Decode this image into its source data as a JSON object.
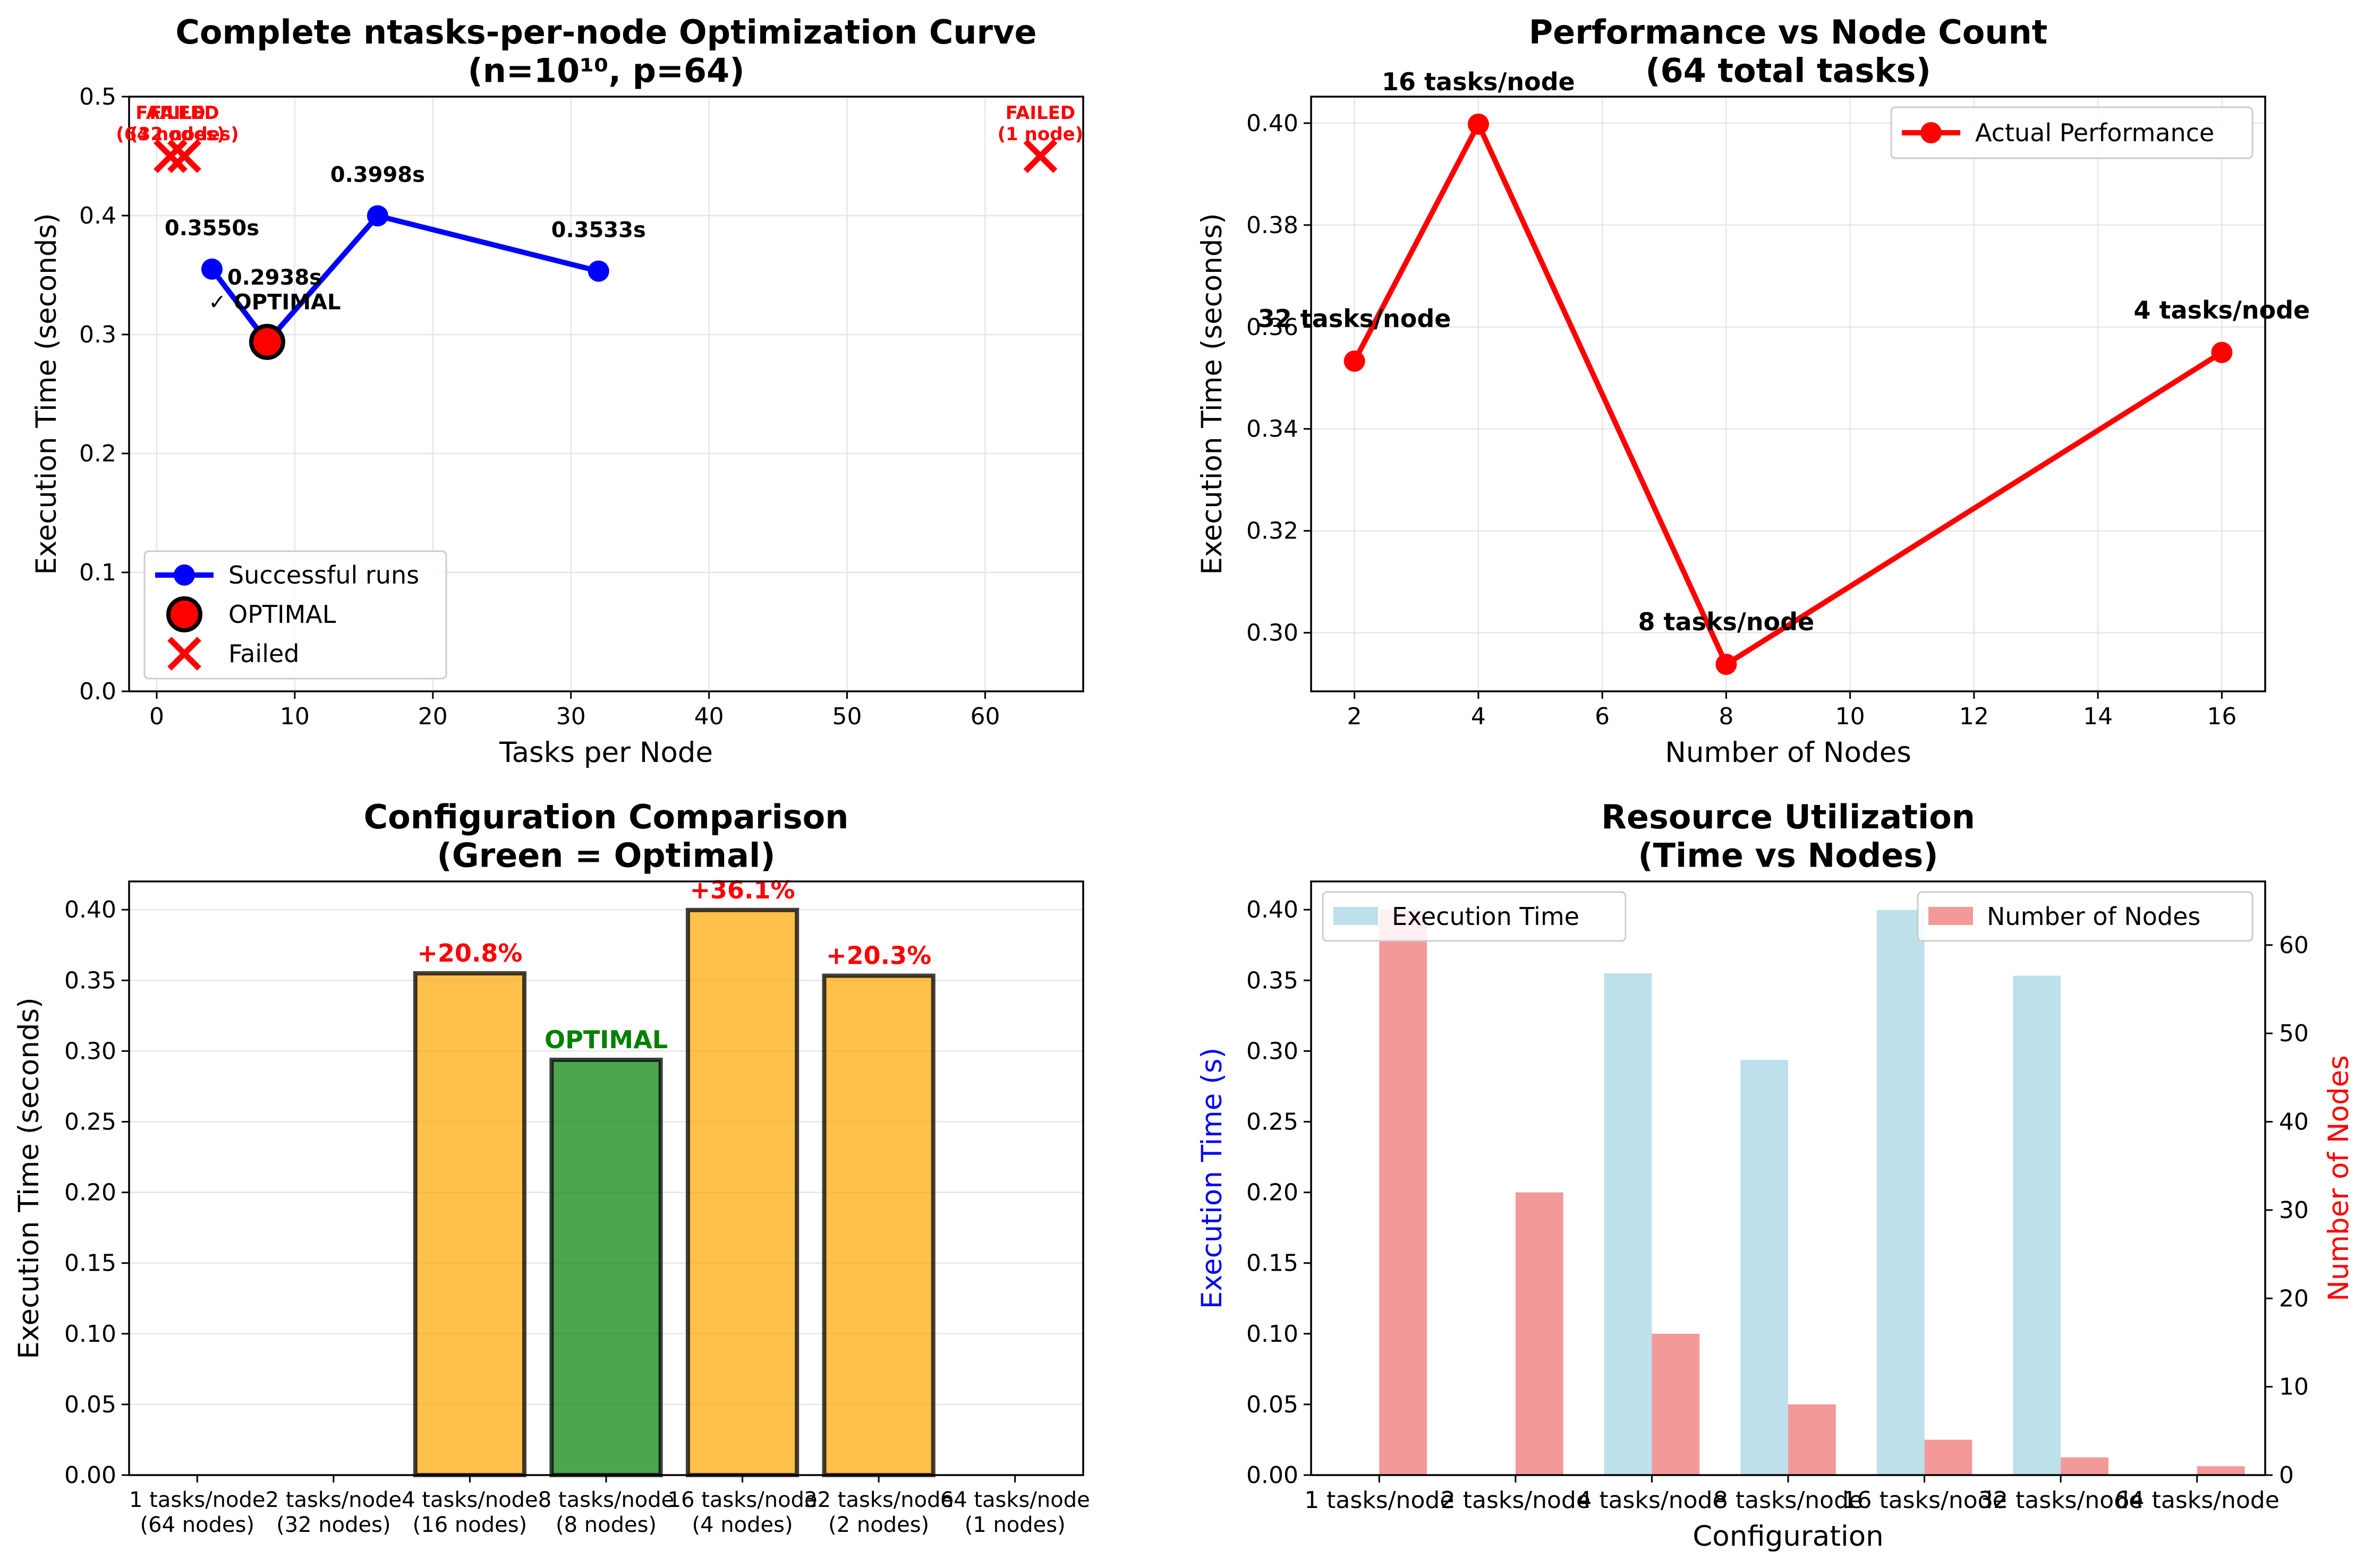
{
  "chart_data": [
    {
      "id": "p1",
      "type": "scatter",
      "title": "Complete ntasks-per-node Optimization Curve\n(n=10¹⁰, p=64)",
      "xlabel": "Tasks per Node",
      "ylabel": "Execution Time (seconds)",
      "xlim": [
        -2,
        67.1
      ],
      "ylim": [
        0,
        0.5
      ],
      "xticks": [
        0,
        10,
        20,
        30,
        40,
        50,
        60
      ],
      "yticks": [
        0.0,
        0.1,
        0.2,
        0.3,
        0.4,
        0.5
      ],
      "grid": true,
      "legend_position": "lower left",
      "series": [
        {
          "name": "Successful runs",
          "kind": "line",
          "color": "#0000ff",
          "x": [
            4,
            8,
            16,
            32
          ],
          "y": [
            0.355,
            0.2938,
            0.3998,
            0.3533
          ]
        },
        {
          "name": "OPTIMAL",
          "kind": "point",
          "color": "#ff0000",
          "x": [
            8
          ],
          "y": [
            0.2938
          ]
        },
        {
          "name": "Failed",
          "kind": "cross",
          "color": "#ff0000",
          "x": [
            1,
            2,
            64
          ],
          "y": [
            0.45,
            0.45,
            0.45
          ]
        }
      ],
      "annotations": [
        {
          "x": 4,
          "y": 0.355,
          "text": "0.3550s",
          "color": "#000000"
        },
        {
          "x": 8,
          "y": 0.2938,
          "text": "0.2938s\n✓ OPTIMAL",
          "color": "#000000"
        },
        {
          "x": 16,
          "y": 0.3998,
          "text": "0.3998s",
          "color": "#000000"
        },
        {
          "x": 32,
          "y": 0.3533,
          "text": "0.3533s",
          "color": "#000000"
        },
        {
          "x": 1,
          "y": 0.45,
          "text": "FAILED\n(64 nodes)",
          "color": "#ff0000"
        },
        {
          "x": 2,
          "y": 0.45,
          "text": "FAILED\n(32 nodes)",
          "color": "#ff0000"
        },
        {
          "x": 64,
          "y": 0.45,
          "text": "FAILED\n(1 node)",
          "color": "#ff0000"
        }
      ]
    },
    {
      "id": "p2",
      "type": "line",
      "title": "Performance vs Node Count\n(64 total tasks)",
      "xlabel": "Number of Nodes",
      "ylabel": "Execution Time (seconds)",
      "xlim": [
        1.3,
        16.7
      ],
      "ylim": [
        0.2885,
        0.4052
      ],
      "xticks": [
        2,
        4,
        6,
        8,
        10,
        12,
        14,
        16
      ],
      "yticks": [
        0.3,
        0.32,
        0.34,
        0.36,
        0.38,
        0.4
      ],
      "grid": true,
      "legend_position": "upper right",
      "series": [
        {
          "name": "Actual Performance",
          "color": "#ff0000",
          "x": [
            2,
            4,
            8,
            16
          ],
          "y": [
            0.3533,
            0.3998,
            0.2938,
            0.355
          ]
        }
      ],
      "annotations": [
        {
          "x": 2,
          "y": 0.3533,
          "text": "32 tasks/node"
        },
        {
          "x": 4,
          "y": 0.3998,
          "text": "16 tasks/node"
        },
        {
          "x": 8,
          "y": 0.2938,
          "text": "8 tasks/node"
        },
        {
          "x": 16,
          "y": 0.355,
          "text": "4 tasks/node"
        }
      ]
    },
    {
      "id": "p3",
      "type": "bar",
      "title": "Configuration Comparison\n(Green = Optimal)",
      "xlabel": "",
      "ylabel": "Execution Time (seconds)",
      "ylim": [
        0,
        0.42
      ],
      "yticks": [
        0.0,
        0.05,
        0.1,
        0.15,
        0.2,
        0.25,
        0.3,
        0.35,
        0.4
      ],
      "grid": true,
      "categories": [
        "1 tasks/node\n(64 nodes)",
        "2 tasks/node\n(32 nodes)",
        "4 tasks/node\n(16 nodes)",
        "8 tasks/node\n(8 nodes)",
        "16 tasks/node\n(4 nodes)",
        "32 tasks/node\n(2 nodes)",
        "64 tasks/node\n(1 nodes)"
      ],
      "values": [
        null,
        null,
        0.355,
        0.2938,
        0.3998,
        0.3533,
        null
      ],
      "bar_colors": [
        "#ffa500",
        "#ffa500",
        "#ffa500",
        "#008000",
        "#ffa500",
        "#ffa500",
        "#ffa500"
      ],
      "labels": [
        "",
        "",
        "+20.8%",
        "OPTIMAL",
        "+36.1%",
        "+20.3%",
        ""
      ],
      "label_colors": [
        "#ff0000",
        "#ff0000",
        "#ff0000",
        "#008000",
        "#ff0000",
        "#ff0000",
        "#ff0000"
      ]
    },
    {
      "id": "p4",
      "type": "bar",
      "title": "Resource Utilization\n(Time vs Nodes)",
      "xlabel": "Configuration",
      "ylabel": "Execution Time (s)",
      "ylabel_right": "Number of Nodes",
      "ylim": [
        0,
        0.42
      ],
      "ylim_right": [
        0,
        67.2
      ],
      "yticks": [
        0.0,
        0.05,
        0.1,
        0.15,
        0.2,
        0.25,
        0.3,
        0.35,
        0.4
      ],
      "yticks_right": [
        0,
        10,
        20,
        30,
        40,
        50,
        60
      ],
      "grid": false,
      "categories": [
        "1 tasks/node",
        "2 tasks/node",
        "4 tasks/node",
        "8 tasks/node",
        "16 tasks/node",
        "32 tasks/node",
        "64 tasks/node"
      ],
      "series": [
        {
          "name": "Execution Time",
          "axis": "left",
          "color": "#add8e6",
          "values": [
            0,
            0,
            0.355,
            0.2938,
            0.3998,
            0.3533,
            0
          ]
        },
        {
          "name": "Number of Nodes",
          "axis": "right",
          "color": "#f08080",
          "values": [
            64,
            32,
            16,
            8,
            4,
            2,
            1
          ]
        }
      ],
      "legend_left": "upper left",
      "legend_right": "upper right"
    }
  ]
}
